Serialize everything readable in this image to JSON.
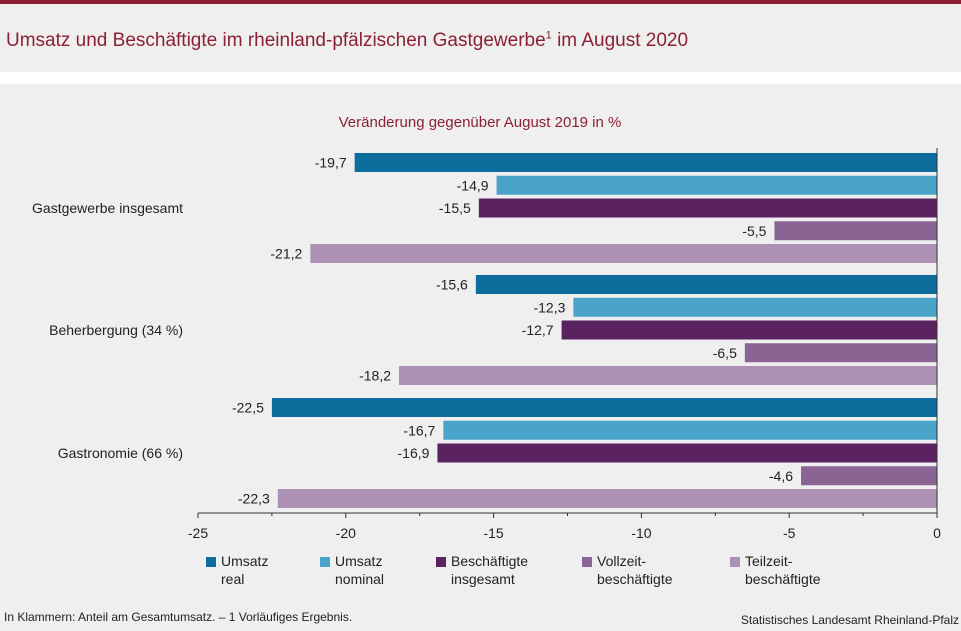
{
  "header": {
    "title": "Umsatz und Beschäftigte im rheinland-pfälzischen Gastgewerbe",
    "title_footnote_mark": "1",
    "title_suffix": " im August 2020"
  },
  "footer": {
    "footnote": "In Klammern: Anteil am Gesamtumsatz. – 1 Vorläufiges Ergebnis.",
    "source": "Statistisches Landesamt Rheinland-Pfalz"
  },
  "chart_data": {
    "type": "bar",
    "orientation": "horizontal",
    "title": "Veränderung gegenüber August 2019 in %",
    "categories": [
      "Gastgewerbe insgesamt",
      "Beherbergung (34 %)",
      "Gastronomie (66 %)"
    ],
    "series": [
      {
        "name": "Umsatz real",
        "color": "#0d6e9e",
        "values": [
          -19.7,
          -15.6,
          -22.5
        ],
        "labels": [
          "-19,7",
          "-15,6",
          "-22,5"
        ]
      },
      {
        "name": "Umsatz nominal",
        "color": "#4aa3c8",
        "values": [
          -14.9,
          -12.3,
          -16.7
        ],
        "labels": [
          "-14,9",
          "-12,3",
          "-16,7"
        ]
      },
      {
        "name": "Beschäftigte insgesamt",
        "color": "#5b2260",
        "values": [
          -15.5,
          -12.7,
          -16.9
        ],
        "labels": [
          "-15,5",
          "-12,7",
          "-16,9"
        ]
      },
      {
        "name": "Vollzeit-beschäftigte",
        "color": "#8a6593",
        "values": [
          -5.5,
          -6.5,
          -4.6
        ],
        "labels": [
          "-5,5",
          "-6,5",
          "-4,6"
        ]
      },
      {
        "name": "Teilzeit-beschäftigte",
        "color": "#ad91b5",
        "values": [
          -21.2,
          -18.2,
          -22.3
        ],
        "labels": [
          "-21,2",
          "-18,2",
          "-22,3"
        ]
      }
    ],
    "legend_labels": [
      [
        "Umsatz",
        "real"
      ],
      [
        "Umsatz",
        "nominal"
      ],
      [
        "Beschäftigte",
        "insgesamt"
      ],
      [
        "Vollzeit-",
        "beschäftigte"
      ],
      [
        "Teilzeit-",
        "beschäftigte"
      ]
    ],
    "xlim": [
      -25,
      0
    ],
    "xticks": [
      -25,
      -20,
      -15,
      -10,
      -5,
      0
    ],
    "legend_position": "bottom",
    "grid": false
  }
}
